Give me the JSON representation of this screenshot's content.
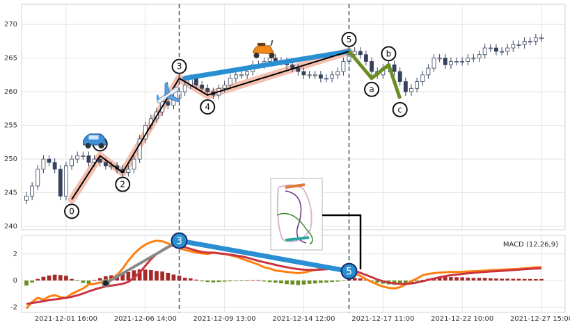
{
  "chart_data": [
    {
      "type": "candlestick",
      "panel": "price",
      "ylim": [
        239.5,
        273
      ],
      "yticks": [
        240,
        245,
        250,
        255,
        260,
        265,
        270
      ],
      "grid": true,
      "colors": {
        "up": "#ffffff",
        "down": "#34425c",
        "wave_outline": "#f4b9a6"
      },
      "close": [
        244.5,
        246,
        248.5,
        250,
        249.5,
        248.5,
        244.5,
        249,
        250,
        250.5,
        250.5,
        249.5,
        250,
        249.5,
        249,
        249,
        248.5,
        248,
        248.5,
        250,
        253,
        255,
        256,
        257,
        258.5,
        258,
        259,
        260,
        261,
        262,
        261,
        260.5,
        260,
        259.5,
        260.5,
        261,
        262,
        262.5,
        262.5,
        263,
        264,
        264,
        264.5,
        265,
        264.5,
        264.5,
        264,
        263.5,
        263,
        262.5,
        262.5,
        262.5,
        262,
        262,
        262.5,
        263,
        264.5,
        265.5,
        266,
        265.5,
        264.5,
        263,
        262.5,
        263.5,
        264,
        263,
        261.5,
        260,
        260.5,
        261.5,
        262.5,
        263.5,
        265,
        265,
        264,
        264.5,
        264.5,
        264.5,
        265,
        265,
        265.5,
        266.5,
        266.5,
        266,
        266,
        266.5,
        267,
        267,
        267.5,
        267.5,
        268,
        268
      ]
    },
    {
      "type": "line",
      "panel": "elliott_waves",
      "impulse": {
        "labels": [
          "0",
          "1",
          "2",
          "3",
          "4",
          "5"
        ],
        "x": [
          8,
          13,
          17,
          27,
          32,
          57
        ],
        "y": [
          244,
          250.5,
          248,
          262,
          259.5,
          266
        ]
      },
      "correction": {
        "labels": [
          "a",
          "b",
          "c"
        ],
        "x": [
          61,
          64,
          66
        ],
        "y": [
          262,
          264,
          259
        ]
      },
      "trend_line": {
        "x": [
          28,
          57
        ],
        "y": [
          262,
          266
        ]
      },
      "colors": {
        "impulse": "#000000",
        "impulse_halo": "#f4b9a6",
        "correction": "#6b8e23",
        "trend": "#2a8fd2"
      }
    },
    {
      "type": "bar+line",
      "panel": "macd",
      "title": "MACD (12,26,9)",
      "ylim": [
        -2.4,
        3.4
      ],
      "yticks": [
        -2,
        0,
        2
      ],
      "histogram": [
        -0.38,
        -0.15,
        0.12,
        0.28,
        0.38,
        0.44,
        0.41,
        0.36,
        0.12,
        -0.05,
        -0.18,
        -0.25,
        0.05,
        0.18,
        0.32,
        0.39,
        0.45,
        0.51,
        0.63,
        0.77,
        0.84,
        0.82,
        0.79,
        0.72,
        0.68,
        0.58,
        0.45,
        0.37,
        0.21,
        0.16,
        0.07,
        -0.06,
        -0.11,
        -0.14,
        -0.11,
        -0.08,
        -0.06,
        -0.03,
        -0.02,
        0.01,
        0.03,
        0.05,
        -0.07,
        -0.12,
        -0.16,
        -0.21,
        -0.27,
        -0.3,
        -0.34,
        -0.3,
        -0.25,
        -0.22,
        -0.18,
        -0.15,
        -0.11,
        -0.08,
        -0.02,
        0.11,
        0.2,
        0.16,
        0.07,
        -0.07,
        -0.16,
        -0.24,
        -0.29,
        -0.32,
        -0.29,
        -0.24,
        -0.16,
        -0.07,
        0.05,
        0.13,
        0.2,
        0.22,
        0.26,
        0.26,
        0.25,
        0.24,
        0.22,
        0.2,
        0.2,
        0.2,
        0.17,
        0.15,
        0.14,
        0.14,
        0.13,
        0.13,
        0.12,
        0.12,
        0.11,
        0.12
      ],
      "macd": [
        -2.1,
        -1.6,
        -1.3,
        -1.45,
        -1.2,
        -1.1,
        -1.25,
        -1.3,
        -1.0,
        -0.8,
        -0.6,
        -0.3,
        -0.25,
        -0.15,
        -0.1,
        0.1,
        0.4,
        0.9,
        1.5,
        2.0,
        2.4,
        2.7,
        2.9,
        3.0,
        2.95,
        2.8,
        2.6,
        2.45,
        2.3,
        2.2,
        2.1,
        2.05,
        2.0,
        2.1,
        2.05,
        2.0,
        1.9,
        1.8,
        1.65,
        1.5,
        1.35,
        1.2,
        1.0,
        0.9,
        0.75,
        0.7,
        0.65,
        0.6,
        0.55,
        0.6,
        0.7,
        0.8,
        0.9,
        0.95,
        1.0,
        0.95,
        0.85,
        0.75,
        0.55,
        0.35,
        0.1,
        -0.1,
        -0.3,
        -0.45,
        -0.55,
        -0.6,
        -0.5,
        -0.3,
        -0.05,
        0.15,
        0.4,
        0.5,
        0.55,
        0.6,
        0.62,
        0.65,
        0.65,
        0.66,
        0.68,
        0.7,
        0.72,
        0.75,
        0.78,
        0.8,
        0.82,
        0.84,
        0.86,
        0.88,
        0.92,
        0.96,
        1.0,
        1.0
      ],
      "signal": [
        -1.75,
        -1.7,
        -1.62,
        -1.55,
        -1.48,
        -1.42,
        -1.36,
        -1.31,
        -1.22,
        -1.12,
        -0.98,
        -0.82,
        -0.68,
        -0.55,
        -0.45,
        -0.38,
        -0.32,
        -0.25,
        -0.1,
        0.2,
        0.6,
        1.1,
        1.6,
        2.0,
        2.3,
        2.55,
        2.65,
        2.6,
        2.5,
        2.38,
        2.25,
        2.15,
        2.1,
        2.1,
        2.05,
        2.0,
        1.95,
        1.88,
        1.82,
        1.72,
        1.6,
        1.48,
        1.38,
        1.28,
        1.18,
        1.08,
        1.0,
        0.92,
        0.86,
        0.82,
        0.8,
        0.8,
        0.82,
        0.85,
        0.88,
        0.9,
        0.88,
        0.82,
        0.72,
        0.58,
        0.42,
        0.25,
        0.08,
        -0.05,
        -0.15,
        -0.22,
        -0.26,
        -0.26,
        -0.22,
        -0.15,
        -0.06,
        0.05,
        0.15,
        0.25,
        0.33,
        0.4,
        0.45,
        0.5,
        0.54,
        0.58,
        0.62,
        0.65,
        0.68,
        0.7,
        0.73,
        0.76,
        0.79,
        0.82,
        0.85,
        0.88,
        0.9,
        0.92
      ],
      "divergence": {
        "x": [
          14,
          27,
          57
        ],
        "y": [
          -0.2,
          3.0,
          0.7
        ],
        "labels": [
          "",
          "3",
          "5"
        ]
      },
      "colors": {
        "hist_pos": "#a52a2a",
        "hist_neg": "#6b8e23",
        "macd": "#ff7f0e",
        "signal": "#c9343f",
        "divergence": "#2a8fd2",
        "divergence_start": "#888888"
      }
    }
  ],
  "x_axis": {
    "tick_labels": [
      "2021-12-01 16:00",
      "2021-12-06 14:00",
      "2021-12-09 13:00",
      "2021-12-14 12:00",
      "2021-12-17 11:00",
      "2021-12-22 10:00",
      "2021-12-27 15:00"
    ],
    "tick_index": [
      7,
      21,
      35,
      49,
      63,
      77,
      91
    ],
    "vertical_markers_index": [
      27,
      57
    ]
  },
  "icons": [
    {
      "name": "car-icon",
      "x": 12,
      "y": 252.5
    },
    {
      "name": "airplane-icon",
      "x": 25,
      "y": 259.5
    },
    {
      "name": "scooter-icon",
      "x": 42,
      "y": 266
    }
  ]
}
